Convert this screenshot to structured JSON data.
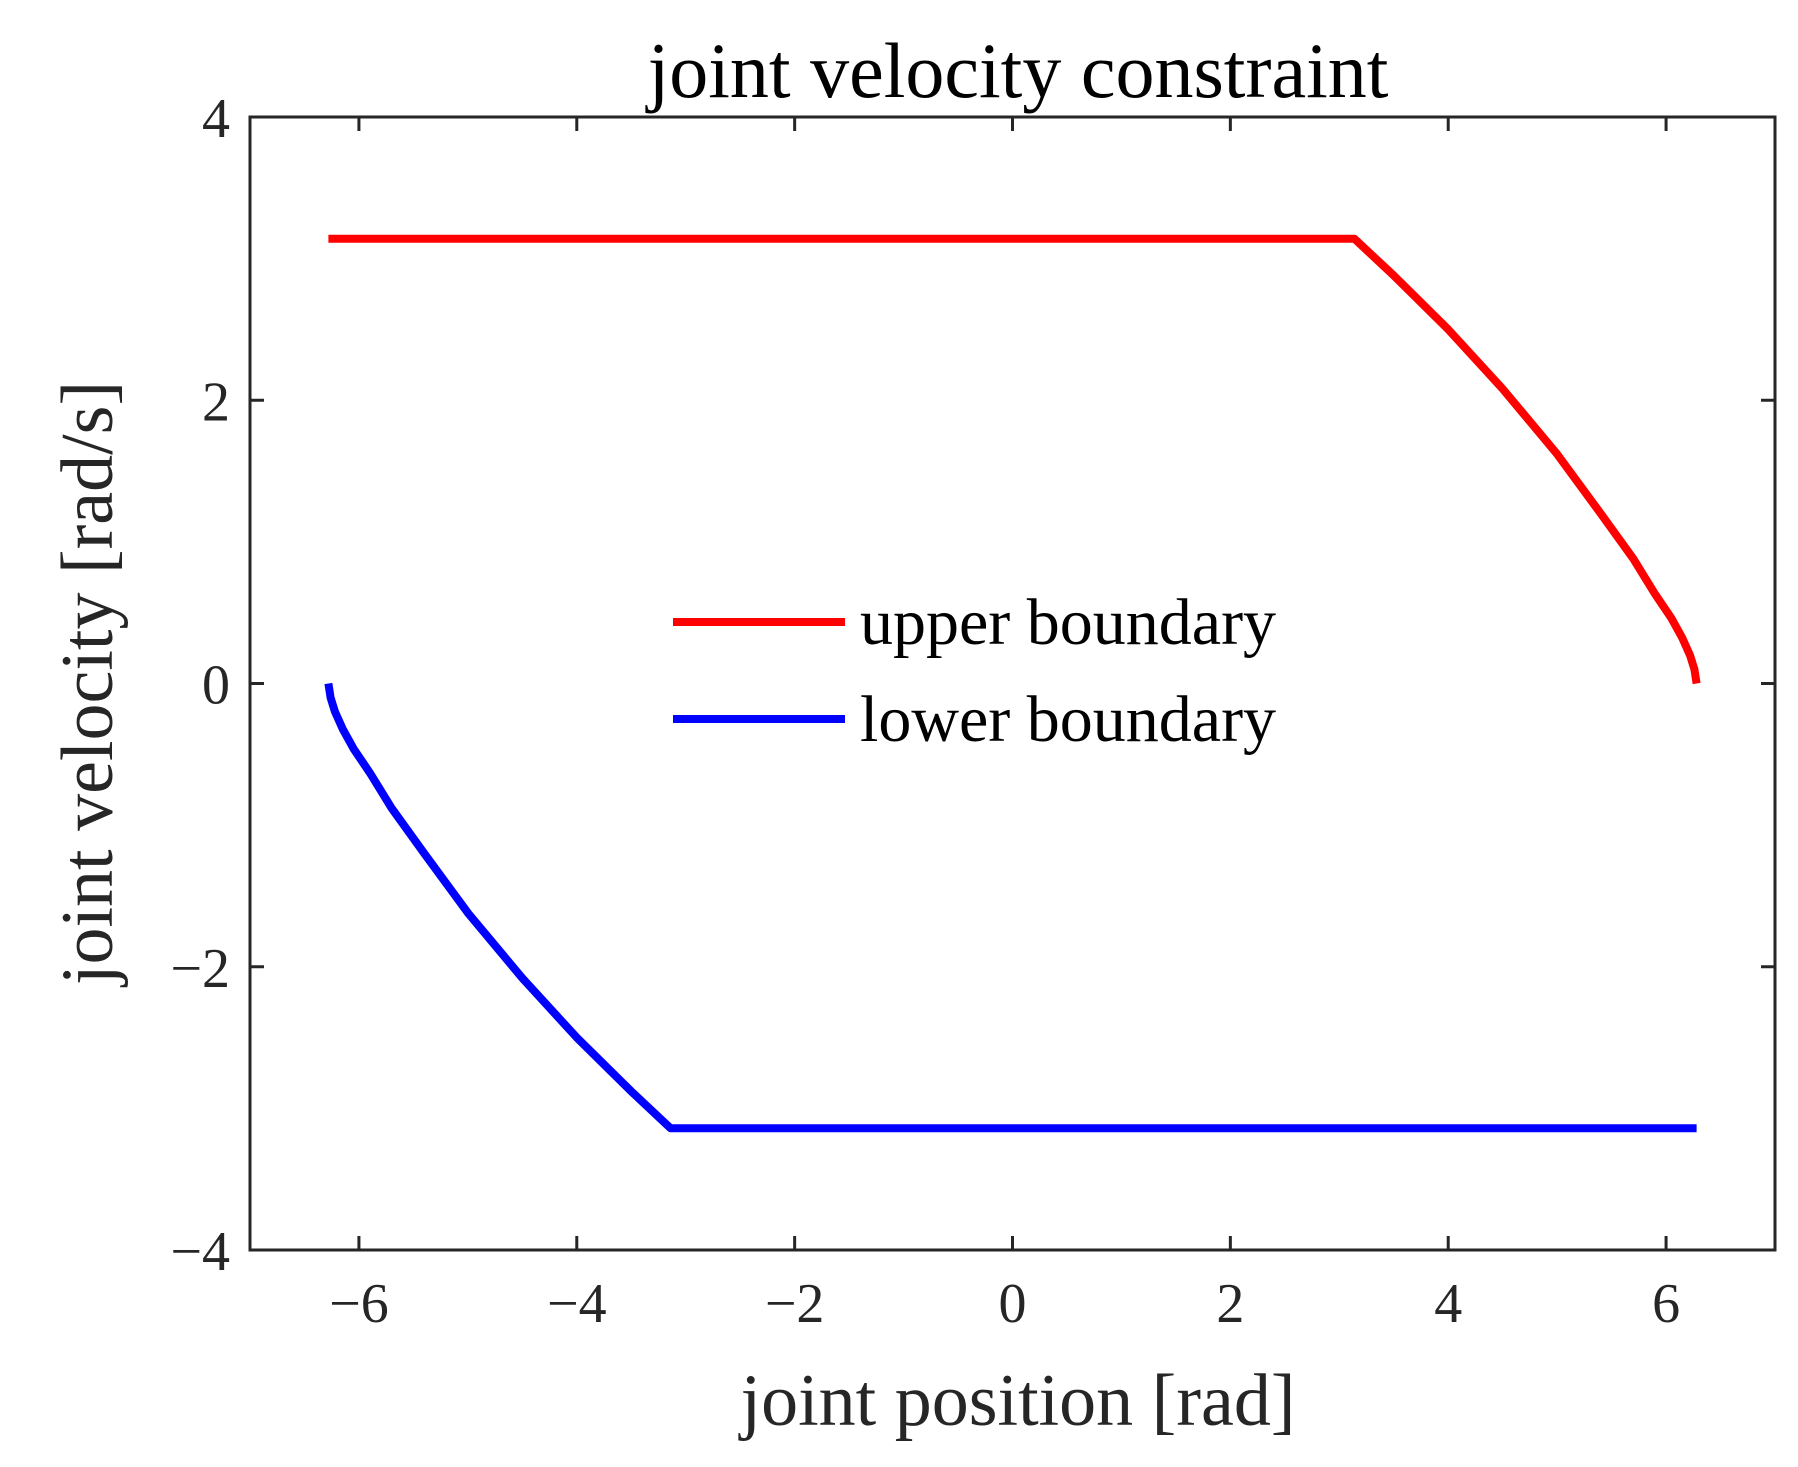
{
  "chart_data": {
    "type": "line",
    "title": "joint velocity constraint",
    "xlabel": "joint position [rad]",
    "ylabel": "joint velocity [rad/s]",
    "xlim": [
      -7,
      7
    ],
    "ylim": [
      -4,
      4
    ],
    "xticks": [
      -6,
      -4,
      -2,
      0,
      2,
      4,
      6
    ],
    "yticks": [
      -4,
      -2,
      0,
      2,
      4
    ],
    "xtick_labels": [
      "−6",
      "−4",
      "−2",
      "0",
      "2",
      "4",
      "6"
    ],
    "ytick_labels": [
      "−4",
      "−2",
      "0",
      "2",
      "4"
    ],
    "grid": false,
    "legend_position": "center",
    "series": [
      {
        "name": "upper boundary",
        "color": "#ff0000",
        "x": [
          -6.28,
          -3.0,
          0.0,
          3.14,
          3.5,
          4.0,
          4.5,
          5.0,
          5.4,
          5.7,
          5.9,
          6.05,
          6.15,
          6.22,
          6.26,
          6.28
        ],
        "y": [
          3.14,
          3.14,
          3.14,
          3.14,
          2.88,
          2.5,
          2.08,
          1.62,
          1.2,
          0.88,
          0.63,
          0.46,
          0.32,
          0.2,
          0.1,
          0.0
        ]
      },
      {
        "name": "lower boundary",
        "color": "#0000ff",
        "x": [
          -6.28,
          -6.26,
          -6.22,
          -6.15,
          -6.05,
          -5.9,
          -5.7,
          -5.4,
          -5.0,
          -4.5,
          -4.0,
          -3.5,
          -3.14,
          0.0,
          3.0,
          6.28
        ],
        "y": [
          0.0,
          -0.1,
          -0.2,
          -0.32,
          -0.46,
          -0.63,
          -0.88,
          -1.2,
          -1.62,
          -2.08,
          -2.5,
          -2.88,
          -3.14,
          -3.14,
          -3.14,
          -3.14
        ]
      }
    ]
  }
}
